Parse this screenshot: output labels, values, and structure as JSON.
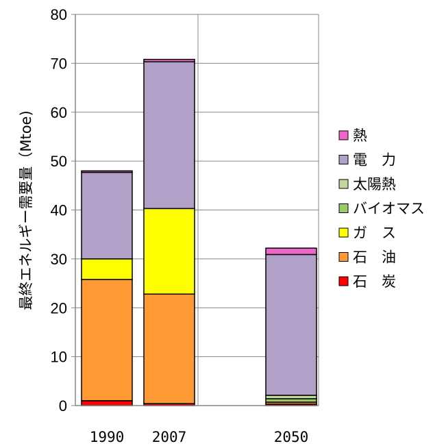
{
  "chart_data": {
    "type": "bar",
    "stacked": true,
    "title": "",
    "xlabel": "",
    "ylabel": "最終エネルギー需要量（Mtoe)",
    "ylim": [
      0,
      80
    ],
    "yticks": [
      0,
      10,
      20,
      30,
      40,
      50,
      60,
      70,
      80
    ],
    "grid": true,
    "legend_position": "right",
    "categories": [
      "1990",
      "2007",
      "2050"
    ],
    "series": [
      {
        "name": "石　炭",
        "color": "#ff0000",
        "values": [
          1.0,
          0.4,
          0.3
        ]
      },
      {
        "name": "石　油",
        "color": "#ff9933",
        "values": [
          24.8,
          22.4,
          0.4
        ]
      },
      {
        "name": "ガ　ス",
        "color": "#ffff00",
        "values": [
          4.2,
          17.5,
          0.0
        ]
      },
      {
        "name": "バイオマス",
        "color": "#99cc66",
        "values": [
          0.0,
          0.0,
          0.7
        ]
      },
      {
        "name": "太陽熱",
        "color": "#c4d79b",
        "values": [
          0.0,
          0.0,
          0.7
        ]
      },
      {
        "name": "電　力",
        "color": "#b1a0c7",
        "values": [
          17.7,
          30.0,
          28.8
        ]
      },
      {
        "name": "熱",
        "color": "#ee66cc",
        "values": [
          0.3,
          0.5,
          1.3
        ]
      }
    ]
  }
}
